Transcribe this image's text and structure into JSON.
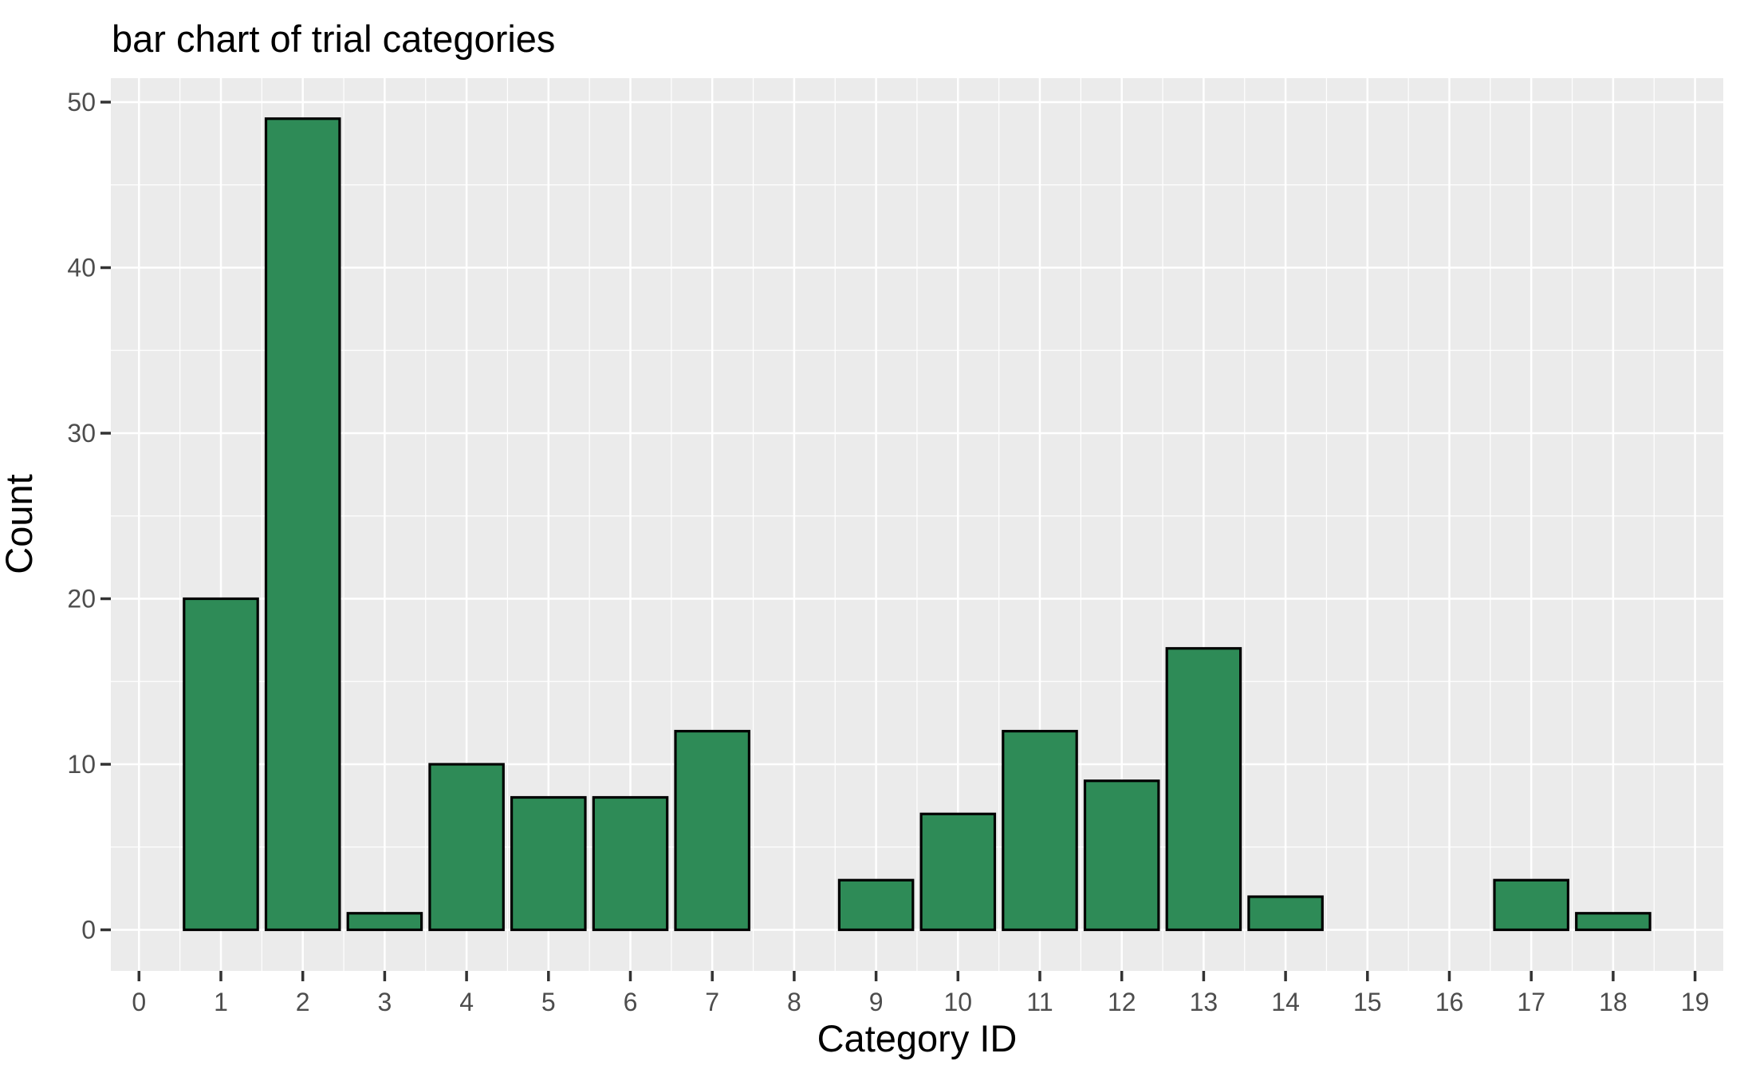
{
  "chart_data": {
    "type": "bar",
    "title": "bar chart of trial categories",
    "xlabel": "Category ID",
    "ylabel": "Count",
    "categories": [
      0,
      1,
      2,
      3,
      4,
      5,
      6,
      7,
      8,
      9,
      10,
      11,
      12,
      13,
      14,
      15,
      16,
      17,
      18,
      19
    ],
    "values": [
      0,
      20,
      49,
      1,
      10,
      8,
      8,
      12,
      0,
      3,
      7,
      12,
      9,
      17,
      2,
      0,
      0,
      3,
      1,
      0
    ],
    "y_ticks": [
      0,
      10,
      20,
      30,
      40,
      50
    ],
    "y_minor_ticks": [
      5,
      15,
      25,
      35,
      45
    ],
    "ylim": [
      0,
      50
    ],
    "xlim": [
      0,
      19
    ],
    "bar_width_fraction": 0.9,
    "grid": "major-and-minor",
    "legend_position": "none",
    "colors": {
      "bar_fill": "#2E8B57",
      "bar_stroke": "#000000",
      "panel_background": "#EBEBEB",
      "gridline": "#FFFFFF",
      "tick_mark": "#333333",
      "tick_label": "#4D4D4D",
      "title": "#000000",
      "figure_background": "#FFFFFF"
    }
  }
}
